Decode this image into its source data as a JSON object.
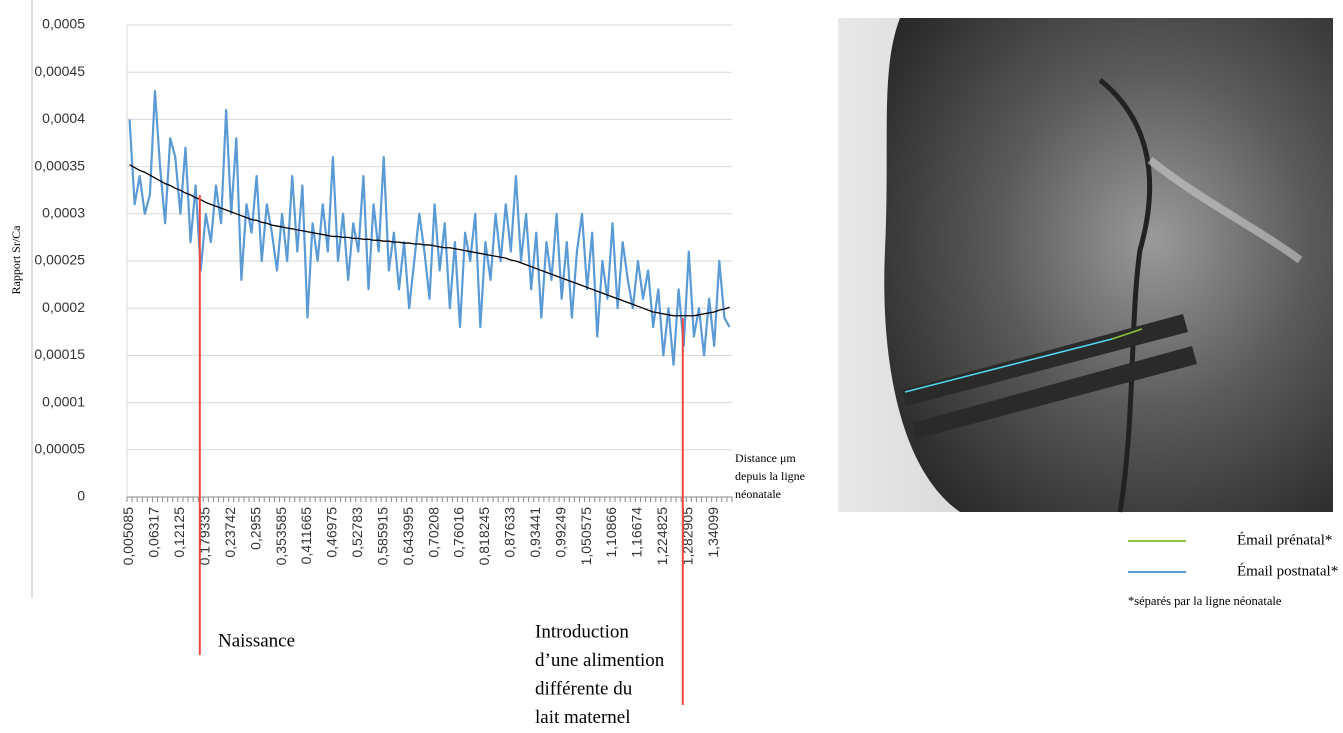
{
  "chart_data": {
    "type": "line",
    "y_label": "Rapport Sr/Ca",
    "x_label_lines": [
      "Distance μm",
      "depuis la ligne",
      "néonatale"
    ],
    "grid": true,
    "ylim": [
      0,
      0.0005
    ],
    "yticks": [
      0,
      {
        "value": 5e-05,
        "label": "0,00005"
      },
      {
        "value": 0.0001,
        "label": "0,0001"
      },
      {
        "value": 0.00015,
        "label": "0,00015"
      },
      {
        "value": 0.0002,
        "label": "0,0002"
      },
      {
        "value": 0.00025,
        "label": "0,00025"
      },
      {
        "value": 0.0003,
        "label": "0,0003"
      },
      {
        "value": 0.00035,
        "label": "0,00035"
      },
      {
        "value": 0.0004,
        "label": "0,0004"
      },
      {
        "value": 0.00045,
        "label": "0,00045"
      },
      {
        "value": 0.0005,
        "label": "0,0005"
      }
    ],
    "categories": [
      "0,005085",
      null,
      null,
      null,
      null,
      "0,06317",
      null,
      null,
      null,
      null,
      "0,12125",
      null,
      null,
      null,
      null,
      "0,179335",
      null,
      null,
      null,
      null,
      "0,23742",
      null,
      null,
      null,
      null,
      "0,2955",
      null,
      null,
      null,
      null,
      "0,353585",
      null,
      null,
      null,
      null,
      "0,411665",
      null,
      null,
      null,
      null,
      "0,46975",
      null,
      null,
      null,
      null,
      "0,52783",
      null,
      null,
      null,
      null,
      "0,585915",
      null,
      null,
      null,
      null,
      "0,643995",
      null,
      null,
      null,
      null,
      "0,70208",
      null,
      null,
      null,
      null,
      "0,76016",
      null,
      null,
      null,
      null,
      "0,818245",
      null,
      null,
      null,
      null,
      "0,87633",
      null,
      null,
      null,
      null,
      "0,93441",
      null,
      null,
      null,
      null,
      "0,99249",
      null,
      null,
      null,
      null,
      "1,050575",
      null,
      null,
      null,
      null,
      "1,10866",
      null,
      null,
      null,
      null,
      "1,16674",
      null,
      null,
      null,
      null,
      "1,224825",
      null,
      null,
      null,
      null,
      "1,282905",
      null,
      null,
      null,
      null,
      "1,34099",
      null,
      null,
      null
    ],
    "series": [
      {
        "color": "#5b9bd5",
        "values": [
          0.0004,
          0.00031,
          0.00034,
          0.0003,
          0.00032,
          0.00043,
          0.00035,
          0.00029,
          0.00038,
          0.00036,
          0.0003,
          0.00037,
          0.00027,
          0.00033,
          0.00024,
          0.0003,
          0.00027,
          0.00033,
          0.00029,
          0.00041,
          0.0003,
          0.00038,
          0.00023,
          0.00031,
          0.00028,
          0.00034,
          0.00025,
          0.00031,
          0.00028,
          0.00024,
          0.0003,
          0.00025,
          0.00034,
          0.00026,
          0.00033,
          0.00019,
          0.00029,
          0.00025,
          0.00031,
          0.00026,
          0.00036,
          0.00025,
          0.0003,
          0.00023,
          0.00029,
          0.00026,
          0.00034,
          0.00022,
          0.00031,
          0.00026,
          0.00036,
          0.00024,
          0.00028,
          0.00022,
          0.00027,
          0.0002,
          0.00025,
          0.0003,
          0.00026,
          0.00021,
          0.00031,
          0.00024,
          0.00029,
          0.0002,
          0.00027,
          0.00018,
          0.00028,
          0.00025,
          0.0003,
          0.00018,
          0.00027,
          0.00023,
          0.0003,
          0.00025,
          0.00031,
          0.00026,
          0.00034,
          0.00025,
          0.0003,
          0.00022,
          0.00028,
          0.00019,
          0.00027,
          0.00023,
          0.0003,
          0.00021,
          0.00027,
          0.00019,
          0.00026,
          0.0003,
          0.00022,
          0.00028,
          0.00017,
          0.00025,
          0.00021,
          0.00029,
          0.0002,
          0.00027,
          0.00023,
          0.0002,
          0.00025,
          0.00021,
          0.00024,
          0.00018,
          0.00022,
          0.00015,
          0.0002,
          0.00014,
          0.00022,
          0.00016,
          0.00026,
          0.00017,
          0.0002,
          0.00015,
          0.00021,
          0.00016,
          0.00025,
          0.00019,
          0.00018
        ]
      },
      {
        "color": "#000000",
        "values": [
          0.000352,
          0.000349,
          0.000346,
          0.000344,
          0.000341,
          0.000338,
          0.000335,
          0.000332,
          0.00033,
          0.000327,
          0.000325,
          0.000322,
          0.00032,
          0.000317,
          0.000315,
          0.000312,
          0.00031,
          0.000308,
          0.000306,
          0.000304,
          0.000302,
          0.0003,
          0.000298,
          0.000296,
          0.000294,
          0.000293,
          0.000291,
          0.00029,
          0.000288,
          0.000287,
          0.000286,
          0.000285,
          0.000284,
          0.000283,
          0.000282,
          0.000281,
          0.00028,
          0.000279,
          0.000278,
          0.000277,
          0.000276,
          0.000276,
          0.000275,
          0.000275,
          0.000274,
          0.000274,
          0.000273,
          0.000273,
          0.000272,
          0.000272,
          0.000271,
          0.000271,
          0.00027,
          0.00027,
          0.000269,
          0.000269,
          0.000268,
          0.000268,
          0.000267,
          0.000267,
          0.000266,
          0.000265,
          0.000264,
          0.000264,
          0.000263,
          0.000262,
          0.000261,
          0.00026,
          0.000259,
          0.000258,
          0.000257,
          0.000256,
          0.000255,
          0.000254,
          0.000253,
          0.000251,
          0.00025,
          0.000248,
          0.000246,
          0.000244,
          0.000242,
          0.00024,
          0.000238,
          0.000236,
          0.000234,
          0.000232,
          0.00023,
          0.000228,
          0.000226,
          0.000224,
          0.000222,
          0.00022,
          0.000218,
          0.000216,
          0.000214,
          0.000212,
          0.00021,
          0.000208,
          0.000206,
          0.000204,
          0.000202,
          0.0002,
          0.000198,
          0.000196,
          0.000195,
          0.000194,
          0.000193,
          0.000192,
          0.000192,
          0.000192,
          0.000192,
          0.000192,
          0.000193,
          0.000194,
          0.000195,
          0.000196,
          0.000198,
          0.000199,
          0.000201
        ]
      }
    ],
    "annotations": [
      {
        "x": "0,179335",
        "color": "#f0463c",
        "lines": [
          "Naissance"
        ]
      },
      {
        "x": "1,282905",
        "color": "#f0463c",
        "lines": [
          "Introduction",
          "d’une alimention",
          "différente du",
          "lait maternel"
        ]
      }
    ]
  },
  "image_legend": {
    "items": [
      {
        "color": "#8cc43c",
        "label": "Émail prénatal*"
      },
      {
        "color": "#5b9bd5",
        "label": "Émail postnatal*"
      }
    ],
    "note": "*séparés par la ligne néonatale"
  }
}
